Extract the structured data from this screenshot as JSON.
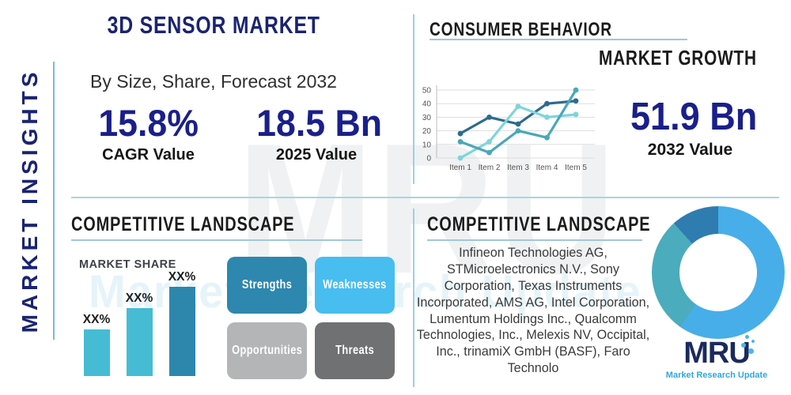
{
  "page": {
    "background": "#ffffff",
    "accent_navy": "#1a2472",
    "divider_blue": "#a9d4e6"
  },
  "sidebar": {
    "label": "MARKET INSIGHTS"
  },
  "top_left": {
    "title": "3D SENSOR MARKET",
    "subtitle": "By Size, Share, Forecast 2032",
    "cagr_value": "15.8%",
    "cagr_label": "CAGR Value",
    "base_value": "18.5 Bn",
    "base_label": "2025 Value"
  },
  "top_right": {
    "title": "CONSUMER BEHAVIOR",
    "subtitle": "MARKET GROWTH",
    "forecast_value": "51.9 Bn",
    "forecast_label": "2032 Value"
  },
  "bottom_left": {
    "title": "COMPETITIVE LANDSCAPE",
    "chart_title": "MARKET SHARE",
    "swot": [
      {
        "label": "Strengths",
        "color": "#2d87ae",
        "text_color": "#ffffff"
      },
      {
        "label": "Weaknesses",
        "color": "#47bdf0",
        "text_color": "#ffffff"
      },
      {
        "label": "Opportunities",
        "color": "#b3b5b6",
        "text_color": "#ffffff"
      },
      {
        "label": "Threats",
        "color": "#6f7173",
        "text_color": "#ffffff"
      }
    ]
  },
  "bottom_right": {
    "title": "COMPETITIVE LANDSCAPE",
    "companies": "Infineon Technologies AG, STMicroelectronics N.V., Sony Corporation, Texas Instruments Incorporated, AMS AG, Intel Corporation, Lumentum Holdings Inc., Qualcomm Technologies, Inc., Melexis NV, Occipital, Inc., trinamiX GmbH (BASF), Faro Technolo"
  },
  "logo": {
    "brand": "MRU",
    "tagline": "Market Research Update",
    "brand_color": "#1b2a5e",
    "tagline_color": "#2fa7e0"
  },
  "watermark": {
    "brand": "MRU",
    "text": "Market Research Update"
  },
  "chart_data": [
    {
      "id": "market-growth-line",
      "type": "line",
      "title": "MARKET GROWTH",
      "x": [
        "Item 1",
        "Item 2",
        "Item 3",
        "Item 4",
        "Item 5"
      ],
      "series": [
        {
          "name": "dark-blue-series",
          "color": "#2c6b8d",
          "values": [
            18,
            30,
            25,
            40,
            42
          ]
        },
        {
          "name": "light-cyan-series",
          "color": "#7fd4da",
          "values": [
            0,
            12,
            38,
            30,
            32
          ]
        },
        {
          "name": "teal-series",
          "color": "#49a8b8",
          "values": [
            12,
            4,
            20,
            15,
            50
          ]
        }
      ],
      "ylim": [
        0,
        50
      ],
      "yticks": [
        0,
        10,
        20,
        30,
        40,
        50
      ],
      "grid": true,
      "legend": "none"
    },
    {
      "id": "market-share-bar",
      "type": "bar",
      "title": "MARKET SHARE",
      "bars": [
        {
          "label": "XX%",
          "height": 59,
          "color": "#45bcd4"
        },
        {
          "label": "XX%",
          "height": 86,
          "color": "#45bcd4"
        },
        {
          "label": "XX%",
          "height": 113,
          "color": "#2d87ad"
        }
      ]
    },
    {
      "id": "competitor-donut",
      "type": "pie",
      "donut": true,
      "inner_radius_ratio": 0.58,
      "slices": [
        {
          "name": "primary-slice",
          "color": "#47aee9",
          "start_deg": 0,
          "end_deg": 215
        },
        {
          "name": "secondary-slice",
          "color": "#4aacbc",
          "start_deg": 215,
          "end_deg": 318
        },
        {
          "name": "tertiary-slice",
          "color": "#2e7cb0",
          "start_deg": 318,
          "end_deg": 360
        }
      ]
    }
  ]
}
